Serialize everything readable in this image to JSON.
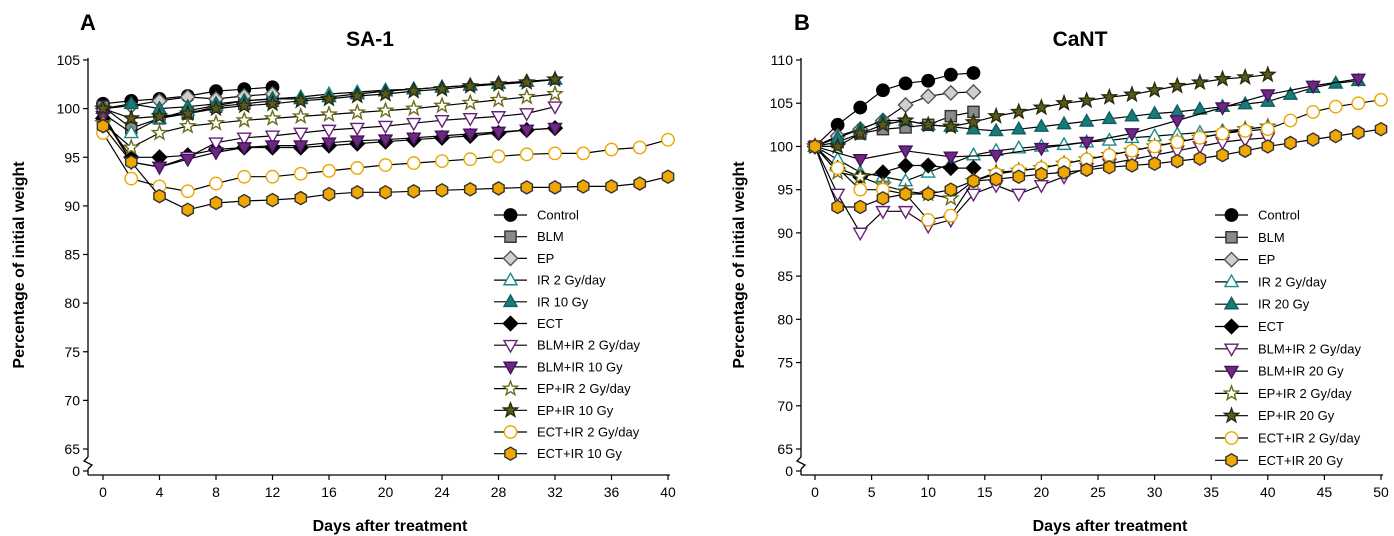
{
  "chart_data": [
    {
      "type": "line",
      "panel": "A",
      "title": "SA-1",
      "xlabel": "Days after treatment",
      "ylabel": "Percentage of initial weight",
      "xlim": [
        0,
        40
      ],
      "ylim": [
        65,
        105
      ],
      "x_ticks": [
        0,
        4,
        8,
        12,
        16,
        20,
        24,
        28,
        32,
        36,
        40
      ],
      "y_ticks": [
        65,
        70,
        75,
        80,
        85,
        90,
        95,
        100,
        105
      ],
      "axis_break": true,
      "break_bottom_tick": 0,
      "legend_position": "bottom-right",
      "series": [
        {
          "name": "Control",
          "marker": "circle",
          "stroke": "#000000",
          "fill": "#000000",
          "x": [
            0,
            2,
            4,
            6,
            8,
            10,
            12
          ],
          "y": [
            100.5,
            100.8,
            101.0,
            101.3,
            101.8,
            102.0,
            102.2
          ]
        },
        {
          "name": "BLM",
          "marker": "square",
          "stroke": "#333333",
          "fill": "#8a8a8a",
          "x": [
            0,
            2,
            4,
            6,
            8,
            10,
            12
          ],
          "y": [
            100.2,
            98.0,
            99.0,
            99.5,
            100.2,
            100.5,
            100.8
          ]
        },
        {
          "name": "EP",
          "marker": "diamond",
          "stroke": "#555555",
          "fill": "#cfcfcf",
          "x": [
            0,
            2,
            4,
            6,
            8,
            10,
            12
          ],
          "y": [
            100.0,
            100.3,
            100.8,
            101.2,
            101.0,
            101.3,
            101.5
          ]
        },
        {
          "name": "IR 2 Gy/day",
          "marker": "triangle-up",
          "stroke": "#1a8a8a",
          "fill": "#ffffff",
          "x": [
            0,
            2,
            4,
            6,
            8,
            10,
            12,
            14,
            16,
            18,
            20,
            22,
            24,
            26,
            28,
            30,
            32
          ],
          "y": [
            99.5,
            97.5,
            99.0,
            99.8,
            100.3,
            100.8,
            101.0,
            101.2,
            101.5,
            101.7,
            101.9,
            102.0,
            102.2,
            102.4,
            102.6,
            102.8,
            103.0
          ]
        },
        {
          "name": "IR 10 Gy",
          "marker": "triangle-up",
          "stroke": "#0f5f5f",
          "fill": "#1a7a7a",
          "x": [
            0,
            2,
            4,
            6,
            8,
            10,
            12,
            14,
            16,
            18,
            20,
            22,
            24,
            26,
            28,
            30,
            32
          ],
          "y": [
            100.0,
            100.5,
            100.0,
            100.2,
            100.5,
            100.8,
            101.0,
            101.0,
            101.2,
            101.5,
            101.8,
            102.0,
            102.2,
            102.4,
            102.6,
            102.8,
            103.0
          ]
        },
        {
          "name": "ECT",
          "marker": "diamond",
          "stroke": "#000000",
          "fill": "#000000",
          "x": [
            0,
            2,
            4,
            6,
            8,
            10,
            12,
            14,
            16,
            18,
            20,
            22,
            24,
            26,
            28,
            30,
            32
          ],
          "y": [
            99.0,
            95.0,
            95.0,
            95.2,
            95.8,
            96.0,
            96.0,
            96.0,
            96.2,
            96.4,
            96.6,
            96.8,
            97.0,
            97.2,
            97.5,
            97.8,
            98.0
          ]
        },
        {
          "name": "BLM+IR 2 Gy/day",
          "marker": "triangle-down",
          "stroke": "#6a1f7a",
          "fill": "#ffffff",
          "x": [
            0,
            2,
            4,
            6,
            8,
            10,
            12,
            14,
            16,
            18,
            20,
            22,
            24,
            26,
            28,
            30,
            32
          ],
          "y": [
            99.5,
            94.5,
            94.0,
            95.0,
            96.5,
            97.0,
            97.2,
            97.5,
            97.8,
            98.0,
            98.2,
            98.5,
            98.8,
            99.0,
            99.2,
            99.5,
            100.2
          ]
        },
        {
          "name": "BLM+IR 10 Gy",
          "marker": "triangle-down",
          "stroke": "#4a1060",
          "fill": "#6a2a80",
          "x": [
            0,
            2,
            4,
            6,
            8,
            10,
            12,
            14,
            16,
            18,
            20,
            22,
            24,
            26,
            28,
            30,
            32
          ],
          "y": [
            99.2,
            94.5,
            94.0,
            94.8,
            95.5,
            96.0,
            96.2,
            96.2,
            96.5,
            96.7,
            96.8,
            97.0,
            97.2,
            97.4,
            97.6,
            97.8,
            98.0
          ]
        },
        {
          "name": "EP+IR 2 Gy/day",
          "marker": "star",
          "stroke": "#6b6b1a",
          "fill": "#ffffff",
          "x": [
            0,
            2,
            4,
            6,
            8,
            10,
            12,
            14,
            16,
            18,
            20,
            22,
            24,
            26,
            28,
            30,
            32
          ],
          "y": [
            98.5,
            96.0,
            97.5,
            98.2,
            98.5,
            98.8,
            99.0,
            99.2,
            99.4,
            99.6,
            99.8,
            100.0,
            100.3,
            100.6,
            100.9,
            101.2,
            101.5
          ]
        },
        {
          "name": "EP+IR 10 Gy",
          "marker": "star",
          "stroke": "#2a2a10",
          "fill": "#5a5a1a",
          "x": [
            0,
            2,
            4,
            6,
            8,
            10,
            12,
            14,
            16,
            18,
            20,
            22,
            24,
            26,
            28,
            30,
            32
          ],
          "y": [
            100.0,
            99.0,
            99.2,
            99.5,
            100.0,
            100.3,
            100.5,
            100.8,
            101.0,
            101.3,
            101.5,
            101.8,
            102.0,
            102.3,
            102.5,
            102.7,
            103.0
          ]
        },
        {
          "name": "ECT+IR 2 Gy/day",
          "marker": "circle",
          "stroke": "#e8a800",
          "fill": "#ffffff",
          "x": [
            0,
            2,
            4,
            6,
            8,
            10,
            12,
            14,
            16,
            18,
            20,
            22,
            24,
            26,
            28,
            30,
            32,
            34,
            36,
            38,
            40
          ],
          "y": [
            97.5,
            92.8,
            92.0,
            91.5,
            92.3,
            93.0,
            93.0,
            93.3,
            93.6,
            93.9,
            94.2,
            94.4,
            94.6,
            94.8,
            95.1,
            95.3,
            95.4,
            95.4,
            95.8,
            96.0,
            96.8
          ]
        },
        {
          "name": "ECT+IR 10 Gy",
          "marker": "hexagon",
          "stroke": "#333333",
          "fill": "#f0a800",
          "x": [
            0,
            2,
            4,
            6,
            8,
            10,
            12,
            14,
            16,
            18,
            20,
            22,
            24,
            26,
            28,
            30,
            32,
            34,
            36,
            38,
            40
          ],
          "y": [
            98.2,
            94.5,
            91.0,
            89.6,
            90.3,
            90.5,
            90.6,
            90.8,
            91.2,
            91.4,
            91.4,
            91.5,
            91.6,
            91.7,
            91.8,
            91.9,
            91.9,
            92.0,
            92.0,
            92.3,
            93.0
          ]
        }
      ]
    },
    {
      "type": "line",
      "panel": "B",
      "title": "CaNT",
      "xlabel": "Days after treatment",
      "ylabel": "Percentage of initial weight",
      "xlim": [
        0,
        50
      ],
      "ylim": [
        65,
        110
      ],
      "x_ticks": [
        0,
        5,
        10,
        15,
        20,
        25,
        30,
        35,
        40,
        45,
        50
      ],
      "y_ticks": [
        65,
        70,
        75,
        80,
        85,
        90,
        95,
        100,
        105,
        110
      ],
      "axis_break": true,
      "break_bottom_tick": 0,
      "legend_position": "bottom-right",
      "series": [
        {
          "name": "Control",
          "marker": "circle",
          "stroke": "#000000",
          "fill": "#000000",
          "x": [
            0,
            2,
            4,
            6,
            8,
            10,
            12,
            14
          ],
          "y": [
            100.0,
            102.5,
            104.5,
            106.5,
            107.3,
            107.6,
            108.3,
            108.5
          ]
        },
        {
          "name": "BLM",
          "marker": "square",
          "stroke": "#333333",
          "fill": "#8a8a8a",
          "x": [
            0,
            2,
            4,
            6,
            8,
            10,
            12,
            14
          ],
          "y": [
            100.0,
            100.5,
            101.5,
            102.0,
            102.2,
            102.5,
            103.5,
            104.0
          ]
        },
        {
          "name": "EP",
          "marker": "diamond",
          "stroke": "#555555",
          "fill": "#cfcfcf",
          "x": [
            0,
            2,
            4,
            6,
            8,
            10,
            12,
            14
          ],
          "y": [
            100.0,
            101.2,
            102.0,
            103.0,
            104.8,
            105.8,
            106.2,
            106.3
          ]
        },
        {
          "name": "IR 2 Gy/day",
          "marker": "triangle-up",
          "stroke": "#1a8a8a",
          "fill": "#ffffff",
          "x": [
            0,
            2,
            4,
            6,
            8,
            10,
            12,
            14,
            16,
            18,
            20,
            22,
            24,
            26,
            28,
            30,
            32,
            34,
            36,
            38,
            40
          ],
          "y": [
            100.0,
            98.5,
            97.0,
            96.5,
            96.0,
            97.0,
            98.0,
            99.0,
            99.5,
            99.8,
            100.0,
            100.2,
            100.5,
            100.7,
            101.0,
            101.2,
            101.4,
            101.6,
            101.8,
            102.0,
            102.3
          ]
        },
        {
          "name": "IR 20 Gy",
          "marker": "triangle-up",
          "stroke": "#0f5f5f",
          "fill": "#1a7a7a",
          "x": [
            0,
            2,
            4,
            6,
            8,
            10,
            12,
            14,
            16,
            18,
            20,
            22,
            24,
            26,
            28,
            30,
            32,
            34,
            36,
            38,
            40,
            42,
            44,
            46,
            48
          ],
          "y": [
            100.0,
            101.0,
            102.0,
            103.0,
            103.0,
            102.5,
            102.3,
            102.0,
            101.8,
            102.0,
            102.3,
            102.6,
            102.9,
            103.2,
            103.5,
            103.8,
            104.0,
            104.3,
            104.6,
            104.9,
            105.2,
            106.0,
            106.8,
            107.3,
            107.6
          ]
        },
        {
          "name": "ECT",
          "marker": "diamond",
          "stroke": "#000000",
          "fill": "#000000",
          "x": [
            0,
            2,
            4,
            6,
            8,
            10,
            12,
            14
          ],
          "y": [
            100.0,
            97.5,
            96.5,
            97.0,
            97.8,
            97.8,
            97.5,
            97.5
          ]
        },
        {
          "name": "BLM+IR 2 Gy/day",
          "marker": "triangle-down",
          "stroke": "#6a1f7a",
          "fill": "#ffffff",
          "x": [
            0,
            2,
            4,
            6,
            8,
            10,
            12,
            14,
            16,
            18,
            20,
            22,
            24,
            26,
            28,
            30,
            32,
            34,
            36,
            38,
            40
          ],
          "y": [
            100.0,
            94.5,
            90.0,
            92.5,
            92.5,
            90.8,
            91.5,
            94.5,
            95.5,
            94.5,
            95.5,
            96.5,
            97.5,
            98.0,
            98.5,
            99.0,
            99.5,
            100.0,
            100.5,
            100.8,
            101.0
          ]
        },
        {
          "name": "BLM+IR 20 Gy",
          "marker": "triangle-down",
          "stroke": "#4a1060",
          "fill": "#6a2a80",
          "x": [
            0,
            4,
            8,
            12,
            16,
            20,
            24,
            28,
            32,
            36,
            40,
            44,
            48
          ],
          "y": [
            100.0,
            98.5,
            99.5,
            98.8,
            99.0,
            99.8,
            100.5,
            101.5,
            103.0,
            104.5,
            106.0,
            107.0,
            107.8
          ]
        },
        {
          "name": "EP+IR 2 Gy/day",
          "marker": "star",
          "stroke": "#6b6b1a",
          "fill": "#ffffff",
          "x": [
            0,
            2,
            4,
            6,
            8,
            10,
            12,
            14,
            16,
            18,
            20,
            22,
            24,
            26,
            28,
            30,
            32,
            34,
            36,
            38,
            40
          ],
          "y": [
            100.0,
            97.0,
            96.5,
            95.5,
            94.8,
            94.5,
            94.0,
            96.0,
            97.0,
            97.2,
            97.5,
            98.0,
            98.5,
            99.0,
            99.5,
            100.0,
            100.5,
            101.0,
            101.5,
            102.0,
            102.3
          ]
        },
        {
          "name": "EP+IR 20 Gy",
          "marker": "star",
          "stroke": "#2a2a10",
          "fill": "#5a5a1a",
          "x": [
            0,
            2,
            4,
            6,
            8,
            10,
            12,
            14,
            16,
            18,
            20,
            22,
            24,
            26,
            28,
            30,
            32,
            34,
            36,
            38,
            40
          ],
          "y": [
            100.0,
            100.0,
            101.5,
            102.5,
            103.0,
            102.5,
            102.3,
            102.8,
            103.5,
            104.0,
            104.5,
            105.0,
            105.3,
            105.7,
            106.0,
            106.5,
            107.0,
            107.4,
            107.8,
            108.0,
            108.3
          ]
        },
        {
          "name": "ECT+IR 2 Gy/day",
          "marker": "circle",
          "stroke": "#e8a800",
          "fill": "#ffffff",
          "x": [
            0,
            2,
            4,
            6,
            8,
            10,
            12,
            14,
            16,
            18,
            20,
            22,
            24,
            26,
            28,
            30,
            32,
            34,
            36,
            38,
            40,
            42,
            44,
            46,
            48,
            50
          ],
          "y": [
            100.0,
            97.5,
            95.0,
            95.0,
            94.5,
            91.5,
            92.0,
            96.0,
            96.8,
            97.2,
            97.5,
            98.0,
            98.5,
            99.0,
            99.5,
            100.0,
            100.5,
            101.0,
            101.5,
            101.8,
            102.0,
            103.0,
            104.0,
            104.6,
            105.0,
            105.4
          ]
        },
        {
          "name": "ECT+IR 20 Gy",
          "marker": "hexagon",
          "stroke": "#333333",
          "fill": "#f0a800",
          "x": [
            0,
            2,
            4,
            6,
            8,
            10,
            12,
            14,
            16,
            18,
            20,
            22,
            24,
            26,
            28,
            30,
            32,
            34,
            36,
            38,
            40,
            42,
            44,
            46,
            48,
            50
          ],
          "y": [
            100.0,
            93.0,
            93.0,
            94.0,
            94.5,
            94.5,
            95.0,
            96.0,
            96.2,
            96.5,
            96.8,
            97.0,
            97.3,
            97.6,
            97.8,
            98.0,
            98.3,
            98.6,
            99.0,
            99.5,
            100.0,
            100.4,
            100.8,
            101.2,
            101.6,
            102.0
          ]
        }
      ]
    }
  ]
}
